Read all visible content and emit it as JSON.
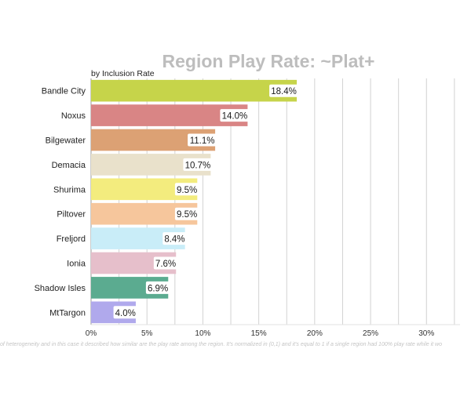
{
  "chart_data": {
    "type": "bar",
    "orientation": "horizontal",
    "title": "Region Play Rate: ~Plat+",
    "subtitle": "by Inclusion Rate",
    "footnote": "of heterogeneity and in this case it described how similar are the play rate among the region. It's normalized in (0,1) and it's equal to 1 if a single region had 100% play rate while it wo",
    "categories": [
      "Bandle City",
      "Noxus",
      "Bilgewater",
      "Demacia",
      "Shurima",
      "Piltover",
      "Freljord",
      "Ionia",
      "Shadow Isles",
      "MtTargon"
    ],
    "values": [
      18.4,
      14.0,
      11.1,
      10.7,
      9.5,
      9.5,
      8.4,
      7.6,
      6.9,
      4.0
    ],
    "data_labels": [
      "18.4%",
      "14.0%",
      "11.1%",
      "10.7%",
      "9.5%",
      "9.5%",
      "8.4%",
      "7.6%",
      "6.9%",
      "4.0%"
    ],
    "colors": [
      "#c6d44a",
      "#d98585",
      "#dca174",
      "#e9e1cb",
      "#f3ec7e",
      "#f6c69c",
      "#c9edf8",
      "#e6bfcb",
      "#5bab90",
      "#b0a9ec"
    ],
    "xlim": [
      0,
      33
    ],
    "xticks": [
      0,
      5,
      10,
      15,
      20,
      25,
      30
    ],
    "xtick_labels": [
      "0%",
      "5%",
      "10%",
      "15%",
      "20%",
      "25%",
      "30%"
    ],
    "grid": true,
    "legend": "none"
  }
}
